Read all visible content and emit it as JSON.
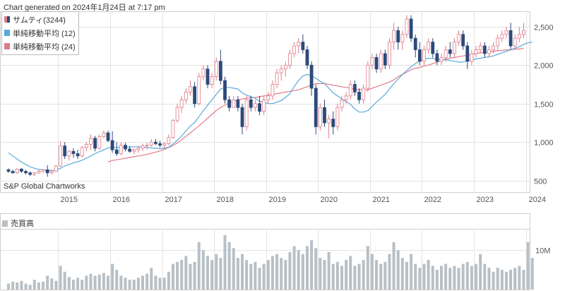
{
  "header": {
    "generated": "Chart generated on 2024年1月24日 at 7:17 pm"
  },
  "source": "S&P Global Chartworks",
  "colors": {
    "up": "#e07b8a",
    "down": "#2c4a7a",
    "ma12": "#5aa9dc",
    "ma24": "#e07b8a",
    "volume": "#b8c0c6",
    "grid": "#e3e3e3"
  },
  "chart_data": [
    {
      "type": "candlestick",
      "interval": "monthly",
      "legend": [
        {
          "name": "サムティ(3244)",
          "swatch": "candle"
        },
        {
          "name": "単純移動平均 (12)",
          "swatch": "ma12"
        },
        {
          "name": "単純移動平均 (24)",
          "swatch": "ma24"
        }
      ],
      "x_ticks": [
        "2015",
        "2016",
        "2017",
        "2018",
        "2019",
        "2020",
        "2021",
        "2022",
        "2023",
        "2024"
      ],
      "y_ticks": [
        500,
        1000,
        1500,
        2000,
        2500
      ],
      "y_tick_labels": [
        "500",
        "1,000",
        "1,500",
        "2,000",
        "2,500"
      ],
      "ylim": [
        350,
        2700
      ],
      "start": "2014-01",
      "ohlc": [
        [
          640,
          660,
          600,
          620
        ],
        [
          620,
          640,
          590,
          600
        ],
        [
          600,
          660,
          590,
          650
        ],
        [
          650,
          660,
          600,
          620
        ],
        [
          620,
          640,
          580,
          600
        ],
        [
          600,
          620,
          560,
          580
        ],
        [
          580,
          610,
          560,
          600
        ],
        [
          600,
          640,
          590,
          620
        ],
        [
          620,
          650,
          600,
          640
        ],
        [
          640,
          700,
          550,
          600
        ],
        [
          600,
          640,
          580,
          620
        ],
        [
          620,
          700,
          610,
          690
        ],
        [
          690,
          1010,
          680,
          950
        ],
        [
          950,
          1000,
          780,
          820
        ],
        [
          820,
          900,
          760,
          880
        ],
        [
          880,
          920,
          800,
          850
        ],
        [
          850,
          900,
          780,
          820
        ],
        [
          820,
          950,
          800,
          930
        ],
        [
          930,
          1000,
          880,
          970
        ],
        [
          970,
          1100,
          900,
          1050
        ],
        [
          1050,
          1080,
          880,
          920
        ],
        [
          920,
          1100,
          900,
          1070
        ],
        [
          1070,
          1150,
          1050,
          1120
        ],
        [
          1120,
          1150,
          1000,
          1020
        ],
        [
          1020,
          1140,
          860,
          900
        ],
        [
          900,
          1000,
          820,
          850
        ],
        [
          850,
          1000,
          830,
          960
        ],
        [
          960,
          990,
          880,
          910
        ],
        [
          910,
          950,
          860,
          880
        ],
        [
          880,
          920,
          840,
          900
        ],
        [
          900,
          950,
          860,
          920
        ],
        [
          920,
          980,
          880,
          950
        ],
        [
          950,
          990,
          900,
          960
        ],
        [
          960,
          1040,
          940,
          1000
        ],
        [
          1000,
          1040,
          960,
          980
        ],
        [
          980,
          1020,
          930,
          960
        ],
        [
          960,
          1000,
          900,
          980
        ],
        [
          980,
          1100,
          960,
          1060
        ],
        [
          1060,
          1300,
          1040,
          1280
        ],
        [
          1280,
          1500,
          1250,
          1450
        ],
        [
          1450,
          1600,
          1380,
          1550
        ],
        [
          1550,
          1700,
          1500,
          1650
        ],
        [
          1650,
          1800,
          1600,
          1720
        ],
        [
          1720,
          1780,
          1450,
          1500
        ],
        [
          1500,
          1900,
          1480,
          1850
        ],
        [
          1850,
          2000,
          1800,
          1950
        ],
        [
          1950,
          2000,
          1700,
          1750
        ],
        [
          1750,
          1900,
          1700,
          1850
        ],
        [
          1850,
          2100,
          1800,
          2050
        ],
        [
          2050,
          2200,
          1750,
          1800
        ],
        [
          1800,
          1850,
          1500,
          1550
        ],
        [
          1550,
          1600,
          1400,
          1450
        ],
        [
          1450,
          1600,
          1450,
          1550
        ],
        [
          1550,
          1600,
          1400,
          1450
        ],
        [
          1450,
          1500,
          1100,
          1200
        ],
        [
          1200,
          1600,
          1150,
          1550
        ],
        [
          1550,
          1600,
          1400,
          1450
        ],
        [
          1450,
          1550,
          1400,
          1500
        ],
        [
          1500,
          1600,
          1350,
          1400
        ],
        [
          1400,
          1600,
          1350,
          1550
        ],
        [
          1550,
          1650,
          1500,
          1600
        ],
        [
          1600,
          1800,
          1550,
          1750
        ],
        [
          1750,
          1950,
          1700,
          1900
        ],
        [
          1900,
          2000,
          1800,
          1950
        ],
        [
          1950,
          2050,
          1850,
          2000
        ],
        [
          2000,
          2200,
          1950,
          2150
        ],
        [
          2150,
          2300,
          2100,
          2250
        ],
        [
          2250,
          2350,
          2150,
          2300
        ],
        [
          2300,
          2400,
          2150,
          2200
        ],
        [
          2200,
          2250,
          1950,
          2000
        ],
        [
          2000,
          2050,
          1600,
          1700
        ],
        [
          1700,
          1750,
          1100,
          1200
        ],
        [
          1200,
          1500,
          1150,
          1450
        ],
        [
          1450,
          1550,
          1200,
          1250
        ],
        [
          1250,
          1350,
          1050,
          1300
        ],
        [
          1300,
          1400,
          1100,
          1200
        ],
        [
          1200,
          1500,
          1150,
          1450
        ],
        [
          1450,
          1600,
          1400,
          1550
        ],
        [
          1550,
          1650,
          1500,
          1600
        ],
        [
          1600,
          1800,
          1550,
          1750
        ],
        [
          1750,
          1800,
          1600,
          1650
        ],
        [
          1650,
          1700,
          1500,
          1550
        ],
        [
          1550,
          1750,
          1500,
          1700
        ],
        [
          1700,
          2050,
          1650,
          2000
        ],
        [
          2000,
          2150,
          1950,
          2100
        ],
        [
          2100,
          2150,
          1900,
          1950
        ],
        [
          1950,
          2200,
          1900,
          2150
        ],
        [
          2150,
          2200,
          1950,
          2000
        ],
        [
          2000,
          2350,
          1950,
          2300
        ],
        [
          2300,
          2550,
          2200,
          2450
        ],
        [
          2450,
          2500,
          2200,
          2300
        ],
        [
          2300,
          2450,
          2200,
          2400
        ],
        [
          2400,
          2650,
          2350,
          2600
        ],
        [
          2600,
          2650,
          2300,
          2350
        ],
        [
          2350,
          2400,
          2100,
          2200
        ],
        [
          2200,
          2300,
          2000,
          2050
        ],
        [
          2050,
          2250,
          2000,
          2200
        ],
        [
          2200,
          2350,
          2150,
          2300
        ],
        [
          2300,
          2350,
          2100,
          2150
        ],
        [
          2150,
          2200,
          2000,
          2050
        ],
        [
          2050,
          2150,
          2000,
          2100
        ],
        [
          2100,
          2250,
          2050,
          2200
        ],
        [
          2200,
          2300,
          2100,
          2150
        ],
        [
          2150,
          2350,
          2100,
          2300
        ],
        [
          2300,
          2450,
          2250,
          2400
        ],
        [
          2400,
          2450,
          2200,
          2250
        ],
        [
          2250,
          2300,
          1950,
          2050
        ],
        [
          2050,
          2200,
          2000,
          2150
        ],
        [
          2150,
          2250,
          2100,
          2200
        ],
        [
          2200,
          2300,
          2150,
          2250
        ],
        [
          2250,
          2300,
          2100,
          2150
        ],
        [
          2150,
          2250,
          2100,
          2200
        ],
        [
          2200,
          2300,
          2150,
          2250
        ],
        [
          2250,
          2400,
          2200,
          2350
        ],
        [
          2350,
          2450,
          2300,
          2400
        ],
        [
          2400,
          2500,
          2350,
          2450
        ],
        [
          2450,
          2550,
          2200,
          2250
        ],
        [
          2250,
          2400,
          2200,
          2350
        ],
        [
          2350,
          2500,
          2300,
          2400
        ],
        [
          2400,
          2550,
          2350,
          2450
        ]
      ],
      "ma12": [
        860,
        820,
        780,
        740,
        710,
        680,
        660,
        645,
        640,
        635,
        632,
        635,
        660,
        690,
        710,
        730,
        745,
        765,
        790,
        820,
        850,
        875,
        900,
        925,
        935,
        930,
        935,
        935,
        935,
        940,
        940,
        935,
        930,
        925,
        920,
        915,
        920,
        935,
        975,
        1025,
        1080,
        1145,
        1210,
        1255,
        1330,
        1410,
        1480,
        1550,
        1620,
        1690,
        1710,
        1710,
        1700,
        1690,
        1640,
        1610,
        1590,
        1570,
        1530,
        1520,
        1500,
        1500,
        1520,
        1540,
        1580,
        1630,
        1720,
        1800,
        1860,
        1880,
        1860,
        1830,
        1790,
        1760,
        1700,
        1640,
        1600,
        1560,
        1530,
        1490,
        1430,
        1390,
        1390,
        1410,
        1460,
        1520,
        1570,
        1620,
        1690,
        1760,
        1820,
        1880,
        1930,
        1980,
        2020,
        2060,
        2080,
        2090,
        2090,
        2080,
        2070,
        2070,
        2060,
        2050,
        2040,
        2040,
        2060,
        2070,
        2080,
        2090,
        2100,
        2110,
        2120,
        2140,
        2160,
        2180,
        2200,
        2220,
        2240,
        2270,
        2290,
        2300
      ],
      "ma24": [
        null,
        null,
        null,
        null,
        null,
        null,
        null,
        null,
        null,
        null,
        null,
        null,
        null,
        null,
        null,
        null,
        null,
        null,
        null,
        null,
        null,
        null,
        null,
        745,
        760,
        770,
        780,
        790,
        800,
        810,
        820,
        830,
        840,
        855,
        870,
        885,
        905,
        930,
        955,
        990,
        1030,
        1075,
        1120,
        1165,
        1210,
        1260,
        1310,
        1360,
        1410,
        1450,
        1480,
        1510,
        1530,
        1550,
        1560,
        1570,
        1575,
        1580,
        1590,
        1600,
        1610,
        1620,
        1630,
        1640,
        1650,
        1660,
        1670,
        1680,
        1700,
        1720,
        1740,
        1760,
        1760,
        1760,
        1750,
        1740,
        1730,
        1720,
        1710,
        1700,
        1690,
        1680,
        1680,
        1680,
        1700,
        1720,
        1740,
        1760,
        1780,
        1810,
        1850,
        1880,
        1910,
        1940,
        1960,
        1970,
        1990,
        2000,
        2020,
        2040,
        2060,
        2080,
        2090,
        2100,
        2110,
        2120,
        2130,
        2140,
        2150,
        2160,
        2170,
        2170,
        2180,
        2190,
        2190,
        2200,
        2200,
        2210,
        2210,
        2220
      ]
    },
    {
      "type": "bar",
      "legend": [
        {
          "name": "売買高",
          "swatch": "volume"
        }
      ],
      "y_ticks": [
        10000000
      ],
      "y_tick_labels": [
        "10M"
      ],
      "ylim": [
        0,
        15000000
      ],
      "values": [
        1500000,
        2000000,
        1800000,
        2200000,
        1500000,
        1200000,
        2500000,
        1800000,
        2000000,
        3500000,
        2800000,
        2200000,
        6000000,
        4500000,
        3200000,
        2500000,
        3000000,
        2500000,
        3500000,
        4000000,
        3500000,
        3800000,
        4200000,
        3500000,
        6500000,
        5000000,
        3500000,
        3000000,
        2500000,
        2500000,
        3000000,
        3500000,
        4000000,
        5500000,
        3500000,
        3000000,
        3000000,
        4500000,
        6500000,
        7000000,
        7500000,
        8500000,
        6500000,
        7000000,
        12000000,
        10000000,
        8500000,
        7500000,
        9000000,
        8000000,
        13800000,
        12000000,
        10500000,
        8000000,
        9000000,
        7500000,
        6500000,
        7000000,
        5500000,
        6500000,
        7500000,
        8500000,
        9000000,
        8000000,
        7500000,
        9500000,
        11000000,
        10000000,
        9000000,
        11000000,
        12500000,
        10500000,
        8000000,
        7500000,
        9500000,
        6500000,
        7000000,
        6000000,
        7500000,
        8500000,
        6000000,
        6500000,
        7500000,
        11000000,
        9000000,
        7500000,
        6500000,
        7000000,
        9000000,
        12000000,
        10000000,
        8000000,
        7000000,
        9000000,
        6500000,
        5500000,
        6500000,
        7500000,
        6000000,
        5000000,
        6000000,
        6500000,
        5500000,
        6000000,
        5500000,
        6500000,
        7000000,
        6000000,
        6500000,
        9000000,
        6500000,
        5500000,
        4500000,
        5500000,
        5000000,
        4500000,
        5000000,
        5500000,
        6000000,
        5000000,
        12000000,
        8000000
      ]
    }
  ]
}
